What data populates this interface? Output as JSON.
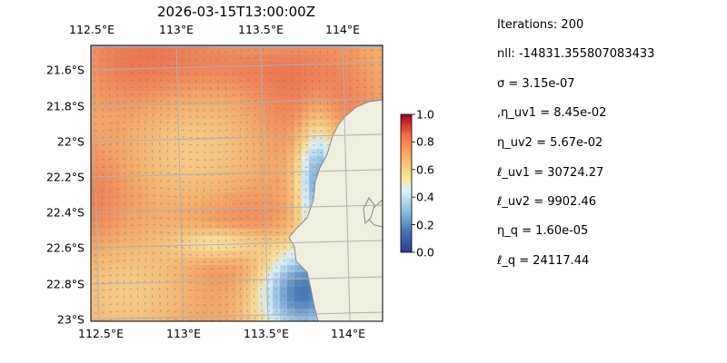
{
  "title": "2026-03-15T13:00:00Z",
  "axes": {
    "top_ticks": [
      "112.5°E",
      "113°E",
      "113.5°E",
      "114°E"
    ],
    "bottom_ticks": [
      "112.5°E",
      "113°E",
      "113.5°E",
      "114°E"
    ],
    "left_ticks": [
      "21.6°S",
      "21.8°S",
      "22°S",
      "22.2°S",
      "22.4°S",
      "22.6°S",
      "22.8°S",
      "23°S"
    ]
  },
  "colorbar": {
    "ticks": [
      "1.0",
      "0.8",
      "0.6",
      "0.4",
      "0.2",
      "0.0"
    ],
    "range": [
      0,
      1
    ]
  },
  "params": [
    "Iterations: 200",
    "nll: -14831.355807083433",
    "σ = 3.15e-07",
    ",η_uv1 = 8.45e-02",
    "η_uv2 = 5.67e-02",
    "ℓ_uv1 = 30724.27",
    "ℓ_uv2 = 9902.46",
    "η_q = 1.60e-05",
    "ℓ_q = 24117.44"
  ],
  "colors": {
    "ocean": "#94b4dc",
    "land": "#efefdf",
    "coast": "#8a8a8a",
    "grid": "#b0b0b0"
  }
}
